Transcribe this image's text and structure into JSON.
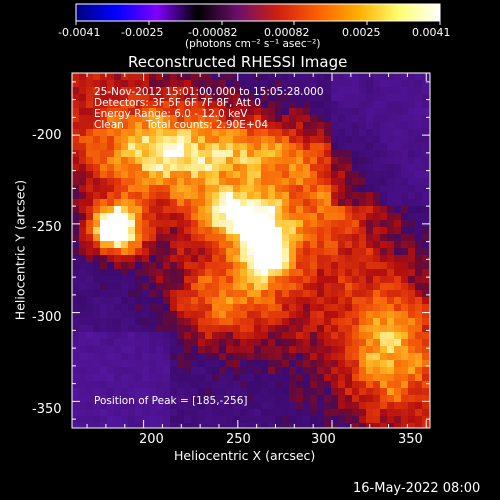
{
  "colorbar": {
    "tick_labels": [
      "-0.0041",
      "-0.0025",
      "-0.00082",
      "0.00082",
      "0.0025",
      "0.0041"
    ],
    "units_label": "(photons cm⁻² s⁻¹ asec⁻²)",
    "colormap": [
      "#000080",
      "#0000ff",
      "#8000ff",
      "#000000",
      "#6b0f6b",
      "#d02010",
      "#ff6000",
      "#ffb000",
      "#ffff70",
      "#ffffff"
    ]
  },
  "plot": {
    "title": "Reconstructed RHESSI Image",
    "xlabel": "Heliocentric X (arcsec)",
    "ylabel": "Heliocentric Y (arcsec)",
    "x_ticks": [
      "200",
      "250",
      "300",
      "350"
    ],
    "y_ticks": [
      "-200",
      "-250",
      "-300",
      "-350"
    ],
    "x_range": [
      162,
      352
    ],
    "y_range": [
      -365,
      -165
    ]
  },
  "annotations": {
    "time_range": "25-Nov-2012 15:01:00.000 to 15:05:28.000",
    "detectors": "Detectors: 3F 5F 6F 7F 8F, Att 0",
    "energy_range": "Energy Range: 6.0 - 12.0 keV",
    "clean_label": "Clean",
    "total_counts": "Total counts: 2.90E+04",
    "peak_position": "Position of Peak = [185,-256]"
  },
  "footer": {
    "timestamp": "16-May-2022 08:00"
  },
  "image_data": {
    "peak_x": 185,
    "peak_y": -256,
    "sources": [
      {
        "x": 185,
        "y": -253,
        "amp": 1.0,
        "sx": 10,
        "sy": 10
      },
      {
        "x": 250,
        "y": -245,
        "amp": 0.55,
        "sx": 14,
        "sy": 10
      },
      {
        "x": 265,
        "y": -265,
        "amp": 0.65,
        "sx": 10,
        "sy": 13
      },
      {
        "x": 210,
        "y": -210,
        "amp": 0.45,
        "sx": 30,
        "sy": 18
      },
      {
        "x": 270,
        "y": -210,
        "amp": 0.35,
        "sx": 25,
        "sy": 14
      },
      {
        "x": 240,
        "y": -295,
        "amp": 0.4,
        "sx": 20,
        "sy": 18
      },
      {
        "x": 330,
        "y": -320,
        "amp": 0.4,
        "sx": 15,
        "sy": 25
      },
      {
        "x": 300,
        "y": -240,
        "amp": 0.3,
        "sx": 20,
        "sy": 20
      }
    ]
  }
}
